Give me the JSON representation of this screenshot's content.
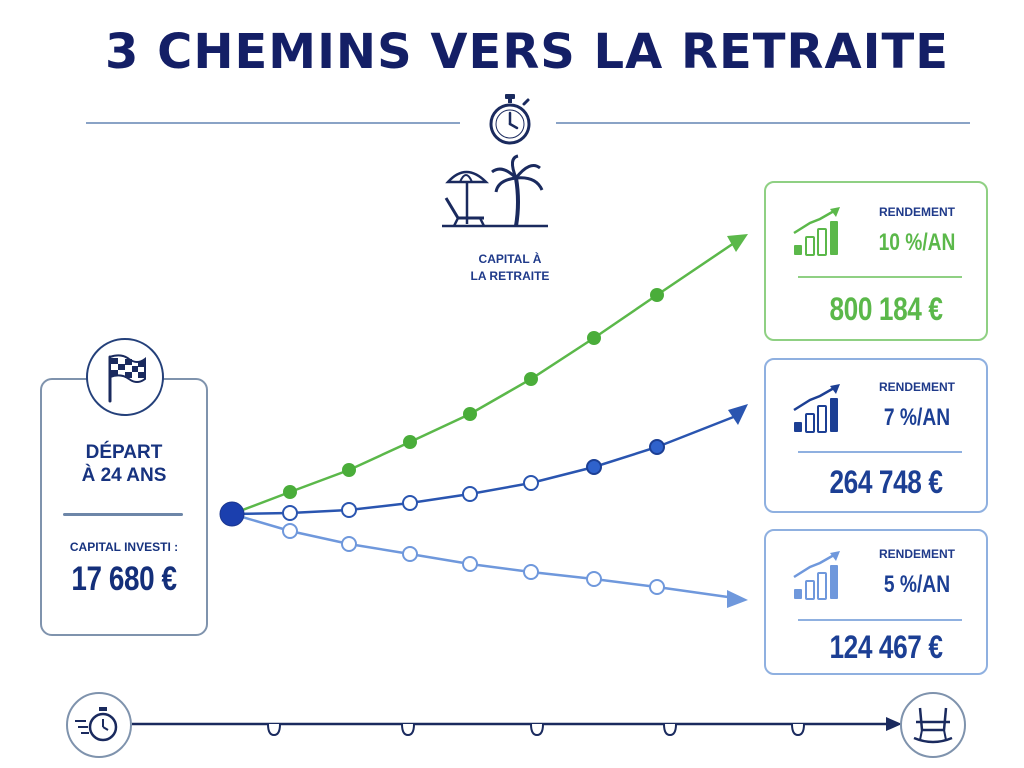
{
  "title": "3 CHEMINS VERS LA RETRAITE",
  "capital_label_line1": "CAPITAL À",
  "capital_label_line2": "LA RETRAITE",
  "start": {
    "line1": "DÉPART",
    "line2": "À 24 ANS",
    "capital_label": "CAPITAL INVESTI :",
    "capital_value": "17 680 €"
  },
  "scenarios": [
    {
      "label": "RENDEMENT",
      "rate": "10 %/AN",
      "value": "800 184 €",
      "color": "#5bb84a"
    },
    {
      "label": "RENDEMENT",
      "rate": "7 %/AN",
      "value": "264 748 €",
      "color": "#1c3f94"
    },
    {
      "label": "RENDEMENT",
      "rate": "5 %/AN",
      "value": "124 467 €",
      "color": "#1c3f94"
    }
  ],
  "icons": {
    "title_icon": "stopwatch-icon",
    "capital_icon": "beach-palm-icon",
    "start_icon": "checkered-flag-icon",
    "timeline_start_icon": "fast-stopwatch-icon",
    "timeline_end_icon": "rocking-chair-icon",
    "result_icon": "growth-chart-icon"
  },
  "colors": {
    "title": "#141f66",
    "green": "#5bb84a",
    "blue": "#2a55b0",
    "light_blue": "#6f98dc",
    "card_border_blue": "#8fb0e0",
    "card_border_green": "#8fd083"
  }
}
